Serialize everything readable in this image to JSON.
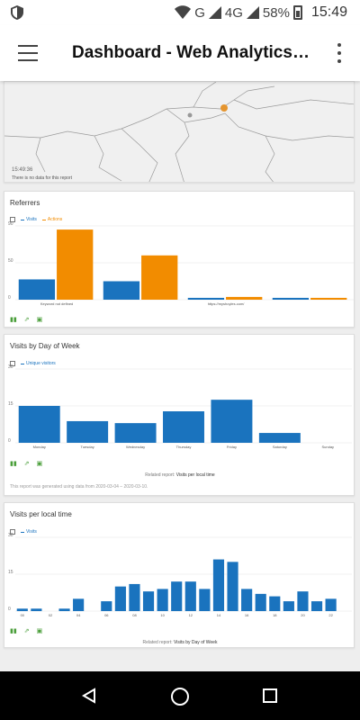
{
  "status_bar": {
    "signal_network": "G",
    "network_type": "4G",
    "battery": "58%",
    "time": "15:49"
  },
  "app_bar": {
    "title": "Dashboard - Web Analytics…"
  },
  "map_card": {
    "time_label": "15:49:36",
    "no_data": "There is no data for this report"
  },
  "referrers": {
    "title": "Referrers",
    "legend": [
      {
        "name": "Visits",
        "color": "#1a73be"
      },
      {
        "name": "Actions",
        "color": "#f28c00"
      }
    ],
    "chart_data": {
      "type": "bar",
      "categories": [
        "Keyword not defined",
        "",
        "https://myshoyles.com/",
        ""
      ],
      "series": [
        {
          "name": "Visits",
          "color": "#1a73be",
          "values": [
            11,
            10,
            1,
            1
          ]
        },
        {
          "name": "Actions",
          "color": "#f28c00",
          "values": [
            38,
            24,
            1.5,
            1
          ]
        }
      ],
      "yticks": [
        "0",
        "50",
        "90"
      ],
      "ylim": [
        0,
        40
      ]
    }
  },
  "day_of_week": {
    "title": "Visits by Day of Week",
    "legend": [
      {
        "name": "Unique visitors",
        "color": "#1a73be"
      }
    ],
    "chart_data": {
      "type": "bar",
      "categories": [
        "Monday",
        "Tuesday",
        "Wednesday",
        "Thursday",
        "Friday",
        "Saturday",
        "Sunday"
      ],
      "values": [
        15,
        8.8,
        8,
        12.8,
        17.5,
        4,
        0
      ],
      "yticks": [
        "0",
        "15",
        "30"
      ],
      "ylim": [
        0,
        30
      ]
    },
    "related": "Related report:",
    "related_link": "Visits per local time",
    "generated": "This report was generated using data from 2020-03-04 – 2020-03-10."
  },
  "local_time": {
    "title": "Visits per local time",
    "legend": [
      {
        "name": "Visits",
        "color": "#1a73be"
      }
    ],
    "chart_data": {
      "type": "bar",
      "categories": [
        "00",
        "01",
        "02",
        "03",
        "04",
        "05",
        "06",
        "07",
        "08",
        "09",
        "10",
        "11",
        "12",
        "13",
        "14",
        "15",
        "16",
        "17",
        "18",
        "19",
        "20",
        "21",
        "22",
        "23"
      ],
      "tick_labels": [
        "00",
        "02",
        "04",
        "06",
        "08",
        "10",
        "12",
        "14",
        "16",
        "18",
        "20",
        "22"
      ],
      "values": [
        1,
        1,
        0,
        1,
        5,
        0,
        4,
        10,
        11,
        8,
        9,
        12,
        12,
        9,
        21,
        20,
        9,
        7,
        6,
        4,
        8,
        4,
        5,
        0
      ],
      "yticks": [
        "0",
        "15",
        "30"
      ],
      "ylim": [
        0,
        30
      ]
    },
    "related": "Related report:",
    "related_link": "Visits by Day of Week"
  }
}
